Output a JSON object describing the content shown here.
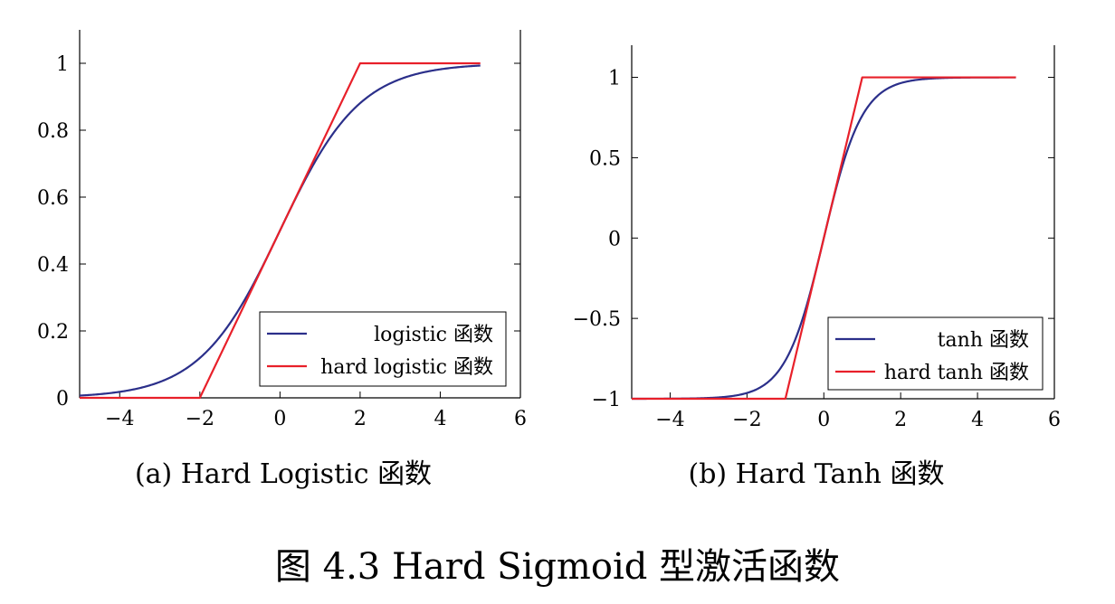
{
  "figure_title": "图 4.3 Hard Sigmoid 型激活函数",
  "chart_data": [
    {
      "type": "line",
      "caption": "(a) Hard Logistic 函数",
      "xlim": [
        -5,
        6
      ],
      "ylim": [
        0,
        1.1
      ],
      "x_ticks": [
        -4,
        -2,
        0,
        2,
        4,
        6
      ],
      "x_tick_labels": [
        "−4",
        "−2",
        "0",
        "2",
        "4",
        "6"
      ],
      "y_ticks": [
        0,
        0.2,
        0.4,
        0.6,
        0.8,
        1
      ],
      "y_tick_labels": [
        "0",
        "0.2",
        "0.4",
        "0.6",
        "0.8",
        "1"
      ],
      "grid": false,
      "legend_position": "bottom-right",
      "series": [
        {
          "name": "logistic 函数",
          "color": "#2b2f8a",
          "function": "logistic",
          "x_range": [
            -5,
            5
          ]
        },
        {
          "name": "hard logistic 函数",
          "color": "#e8202a",
          "function": "hard_logistic",
          "x_range": [
            -5,
            5
          ]
        }
      ]
    },
    {
      "type": "line",
      "caption": "(b) Hard Tanh 函数",
      "xlim": [
        -5,
        6
      ],
      "ylim": [
        -1,
        1.2
      ],
      "x_ticks": [
        -4,
        -2,
        0,
        2,
        4,
        6
      ],
      "x_tick_labels": [
        "−4",
        "−2",
        "0",
        "2",
        "4",
        "6"
      ],
      "y_ticks": [
        -1,
        -0.5,
        0,
        0.5,
        1
      ],
      "y_tick_labels": [
        "−1",
        "−0.5",
        "0",
        "0.5",
        "1"
      ],
      "grid": false,
      "legend_position": "bottom-right",
      "series": [
        {
          "name": "tanh 函数",
          "color": "#2b2f8a",
          "function": "tanh",
          "x_range": [
            -5,
            5
          ]
        },
        {
          "name": "hard tanh 函数",
          "color": "#e8202a",
          "function": "hard_tanh",
          "x_range": [
            -5,
            5
          ]
        }
      ]
    }
  ]
}
